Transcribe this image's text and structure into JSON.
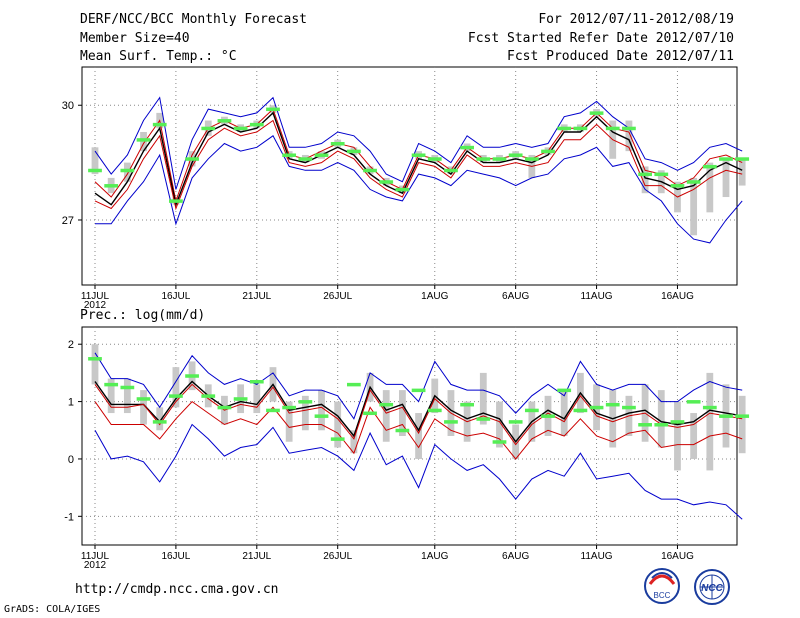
{
  "header": {
    "title": "DERF/NCC/BCC Monthly Forecast",
    "member_size": "Member Size=40",
    "variable": "Mean Surf. Temp.: °C",
    "period": "For 2012/07/11-2012/08/19",
    "refer_date": "Fcst Started Refer Date 2012/07/10",
    "produced_date": "Fcst Produced Date 2012/07/11"
  },
  "footer": {
    "url": "http://cmdp.ncc.cma.gov.cn",
    "grads": "GrADS: COLA/IGES",
    "logo_left_text": "BCC",
    "logo_right_text": "NCC"
  },
  "colors": {
    "spread_line": "#0000cc",
    "percentile_line": "#cc0000",
    "mean_line": "#000000",
    "box": "#c8c8c8",
    "median_mark": "#55ee55",
    "grid": "#888888"
  },
  "chart_data": [
    {
      "type": "line",
      "name": "temperature",
      "title": "Mean Surf. Temp.: °C",
      "days": 39,
      "xticks": [
        {
          "day": 0,
          "label": "11JUL",
          "sub": "2012"
        },
        {
          "day": 5,
          "label": "16JUL"
        },
        {
          "day": 10,
          "label": "21JUL"
        },
        {
          "day": 15,
          "label": "26JUL"
        },
        {
          "day": 21,
          "label": "1AUG"
        },
        {
          "day": 26,
          "label": "6AUG"
        },
        {
          "day": 31,
          "label": "11AUG"
        },
        {
          "day": 36,
          "label": "16AUG"
        }
      ],
      "yticks": [
        27,
        30
      ],
      "ylim": [
        25.3,
        31.0
      ],
      "grid": true,
      "series": [
        {
          "name": "max",
          "style": "blue",
          "values": [
            28.8,
            28.2,
            28.7,
            29.6,
            30.2,
            27.8,
            29.1,
            29.9,
            29.8,
            29.7,
            29.8,
            30.2,
            28.9,
            28.9,
            29.0,
            29.3,
            29.2,
            28.8,
            28.2,
            28.0,
            29.0,
            28.8,
            28.5,
            29.2,
            28.9,
            28.9,
            29.0,
            28.9,
            29.0,
            29.7,
            29.8,
            30.1,
            29.7,
            29.4,
            28.6,
            28.5,
            28.3,
            28.5,
            28.9,
            29.0,
            28.8
          ]
        },
        {
          "name": "upper",
          "style": "red",
          "values": [
            28.0,
            27.6,
            28.2,
            29.0,
            29.6,
            27.5,
            28.7,
            29.4,
            29.6,
            29.4,
            29.5,
            29.9,
            28.7,
            28.6,
            28.8,
            29.0,
            28.9,
            28.4,
            28.0,
            27.8,
            28.7,
            28.6,
            28.3,
            28.9,
            28.6,
            28.6,
            28.7,
            28.6,
            28.8,
            29.4,
            29.4,
            29.8,
            29.4,
            29.3,
            28.3,
            28.2,
            27.9,
            28.1,
            28.6,
            28.7,
            28.5
          ]
        },
        {
          "name": "mean",
          "style": "black",
          "values": [
            27.7,
            27.4,
            28.0,
            28.8,
            29.4,
            27.4,
            28.5,
            29.3,
            29.5,
            29.3,
            29.4,
            29.8,
            28.6,
            28.5,
            28.7,
            28.9,
            28.7,
            28.2,
            27.9,
            27.7,
            28.6,
            28.5,
            28.2,
            28.8,
            28.5,
            28.5,
            28.6,
            28.5,
            28.7,
            29.3,
            29.3,
            29.7,
            29.3,
            29.1,
            28.1,
            28.0,
            27.8,
            27.9,
            28.3,
            28.5,
            28.3
          ]
        },
        {
          "name": "lower",
          "style": "red",
          "values": [
            27.5,
            27.3,
            27.8,
            28.6,
            29.2,
            27.3,
            28.4,
            29.1,
            29.4,
            29.2,
            29.3,
            29.6,
            28.5,
            28.4,
            28.5,
            28.8,
            28.6,
            28.1,
            27.8,
            27.6,
            28.5,
            28.4,
            28.1,
            28.7,
            28.4,
            28.4,
            28.5,
            28.4,
            28.5,
            29.1,
            29.1,
            29.5,
            29.1,
            28.9,
            27.9,
            27.9,
            27.6,
            27.8,
            28.1,
            28.3,
            28.2
          ]
        },
        {
          "name": "min",
          "style": "blue",
          "values": [
            26.9,
            26.9,
            27.5,
            28.0,
            28.7,
            26.9,
            28.1,
            28.6,
            29.0,
            28.8,
            28.9,
            29.2,
            28.4,
            28.3,
            28.3,
            28.5,
            28.3,
            27.8,
            27.6,
            27.5,
            28.2,
            28.1,
            27.9,
            28.3,
            28.2,
            28.1,
            27.9,
            28.1,
            28.2,
            28.6,
            28.7,
            28.9,
            28.4,
            28.5,
            27.8,
            27.5,
            26.9,
            26.5,
            26.4,
            27.0,
            27.5
          ]
        }
      ],
      "boxes": [
        [
          28.2,
          28.9
        ],
        [
          27.7,
          28.1
        ],
        [
          28.0,
          28.5
        ],
        [
          28.8,
          29.3
        ],
        [
          29.4,
          29.8
        ],
        [
          27.4,
          27.6
        ],
        [
          28.4,
          28.8
        ],
        [
          29.2,
          29.6
        ],
        [
          29.5,
          29.7
        ],
        [
          29.3,
          29.5
        ],
        [
          29.4,
          29.6
        ],
        [
          29.8,
          30.0
        ],
        [
          28.6,
          28.8
        ],
        [
          28.5,
          28.7
        ],
        [
          28.6,
          28.8
        ],
        [
          28.9,
          29.1
        ],
        [
          28.7,
          28.9
        ],
        [
          28.2,
          28.4
        ],
        [
          27.9,
          28.1
        ],
        [
          27.7,
          27.9
        ],
        [
          28.6,
          28.8
        ],
        [
          28.5,
          28.7
        ],
        [
          28.2,
          28.4
        ],
        [
          28.8,
          29.0
        ],
        [
          28.5,
          28.7
        ],
        [
          28.5,
          28.7
        ],
        [
          28.6,
          28.8
        ],
        [
          28.1,
          28.7
        ],
        [
          28.7,
          28.9
        ],
        [
          29.3,
          29.5
        ],
        [
          29.3,
          29.5
        ],
        [
          29.7,
          29.9
        ],
        [
          28.6,
          29.6
        ],
        [
          28.8,
          29.6
        ],
        [
          27.7,
          28.4
        ],
        [
          27.7,
          28.3
        ],
        [
          27.2,
          28.0
        ],
        [
          26.6,
          28.1
        ],
        [
          27.2,
          28.5
        ],
        [
          27.6,
          28.6
        ],
        [
          27.9,
          28.6
        ]
      ],
      "medians": [
        28.3,
        27.9,
        28.3,
        29.1,
        29.5,
        27.5,
        28.6,
        29.4,
        29.6,
        29.4,
        29.5,
        29.9,
        28.7,
        28.6,
        28.7,
        29.0,
        28.8,
        28.3,
        28.0,
        27.8,
        28.7,
        28.6,
        28.3,
        28.9,
        28.6,
        28.6,
        28.7,
        28.6,
        28.8,
        29.4,
        29.4,
        29.8,
        29.4,
        29.4,
        28.2,
        28.2,
        27.9,
        28.0,
        28.4,
        28.6,
        28.6
      ]
    },
    {
      "type": "line",
      "name": "precipitation",
      "title": "Prec.: log(mm/d)",
      "days": 39,
      "xticks": [
        {
          "day": 0,
          "label": "11JUL",
          "sub": "2012"
        },
        {
          "day": 5,
          "label": "16JUL"
        },
        {
          "day": 10,
          "label": "21JUL"
        },
        {
          "day": 15,
          "label": "26JUL"
        },
        {
          "day": 21,
          "label": "1AUG"
        },
        {
          "day": 26,
          "label": "6AUG"
        },
        {
          "day": 31,
          "label": "11AUG"
        },
        {
          "day": 36,
          "label": "16AUG"
        }
      ],
      "yticks": [
        -1,
        0,
        1,
        2
      ],
      "ylim": [
        -1.5,
        2.3
      ],
      "grid": true,
      "series": [
        {
          "name": "max",
          "style": "blue",
          "values": [
            1.85,
            1.4,
            1.4,
            1.3,
            0.9,
            1.35,
            1.8,
            1.5,
            1.3,
            1.4,
            1.3,
            1.5,
            1.1,
            1.2,
            1.2,
            1.1,
            0.7,
            1.5,
            1.3,
            1.3,
            1.0,
            1.7,
            1.3,
            1.2,
            1.2,
            1.1,
            0.8,
            1.1,
            1.3,
            1.1,
            1.7,
            1.3,
            1.2,
            1.3,
            1.3,
            1.0,
            1.0,
            1.2,
            1.35,
            1.25,
            1.2
          ]
        },
        {
          "name": "upper",
          "style": "black",
          "values": [
            1.35,
            0.95,
            0.95,
            0.95,
            0.65,
            1.05,
            1.35,
            1.1,
            0.9,
            1.0,
            0.95,
            1.3,
            0.85,
            0.9,
            0.95,
            0.75,
            0.4,
            1.25,
            0.85,
            0.95,
            0.5,
            1.1,
            0.85,
            0.7,
            0.8,
            0.7,
            0.3,
            0.65,
            0.85,
            0.7,
            1.15,
            0.8,
            0.7,
            0.8,
            0.85,
            0.65,
            0.6,
            0.65,
            0.85,
            0.8,
            0.75
          ]
        },
        {
          "name": "mean",
          "style": "red",
          "values": [
            1.3,
            0.9,
            0.9,
            0.95,
            0.6,
            1.0,
            1.3,
            1.05,
            0.85,
            0.95,
            0.9,
            1.25,
            0.8,
            0.85,
            0.9,
            0.7,
            0.35,
            1.2,
            0.8,
            0.9,
            0.45,
            1.05,
            0.8,
            0.65,
            0.75,
            0.65,
            0.25,
            0.6,
            0.8,
            0.65,
            1.1,
            0.75,
            0.65,
            0.75,
            0.8,
            0.6,
            0.55,
            0.6,
            0.8,
            0.75,
            0.7
          ]
        },
        {
          "name": "lower",
          "style": "red",
          "values": [
            1.0,
            0.6,
            0.6,
            0.6,
            0.35,
            0.7,
            1.0,
            0.8,
            0.6,
            0.7,
            0.6,
            0.9,
            0.55,
            0.6,
            0.6,
            0.45,
            0.1,
            0.9,
            0.5,
            0.6,
            0.2,
            0.7,
            0.5,
            0.4,
            0.45,
            0.35,
            0.0,
            0.35,
            0.5,
            0.4,
            0.7,
            0.4,
            0.3,
            0.45,
            0.5,
            0.2,
            0.25,
            0.25,
            0.4,
            0.45,
            0.35
          ]
        },
        {
          "name": "min",
          "style": "blue",
          "values": [
            0.5,
            0.0,
            0.05,
            -0.05,
            -0.4,
            0.05,
            0.6,
            0.35,
            0.05,
            0.2,
            0.25,
            0.55,
            0.1,
            0.15,
            0.2,
            0.05,
            -0.2,
            0.45,
            -0.1,
            0.05,
            -0.5,
            0.25,
            0.0,
            -0.2,
            -0.1,
            -0.35,
            -0.7,
            -0.35,
            -0.2,
            -0.3,
            0.1,
            -0.35,
            -0.3,
            -0.25,
            -0.55,
            -0.7,
            -0.7,
            -0.8,
            -0.75,
            -0.8,
            -1.05
          ]
        }
      ],
      "boxes": [
        [
          1.3,
          2.0
        ],
        [
          0.8,
          1.4
        ],
        [
          0.8,
          1.4
        ],
        [
          0.6,
          1.2
        ],
        [
          0.5,
          0.9
        ],
        [
          0.9,
          1.6
        ],
        [
          1.2,
          1.7
        ],
        [
          0.9,
          1.3
        ],
        [
          0.6,
          1.1
        ],
        [
          0.8,
          1.3
        ],
        [
          0.8,
          1.3
        ],
        [
          1.0,
          1.6
        ],
        [
          0.3,
          1.0
        ],
        [
          0.5,
          1.1
        ],
        [
          0.5,
          1.2
        ],
        [
          0.2,
          1.0
        ],
        [
          0.1,
          0.5
        ],
        [
          1.0,
          1.5
        ],
        [
          0.3,
          1.2
        ],
        [
          0.4,
          1.2
        ],
        [
          0.0,
          0.8
        ],
        [
          0.8,
          1.4
        ],
        [
          0.4,
          1.2
        ],
        [
          0.3,
          1.0
        ],
        [
          0.6,
          1.5
        ],
        [
          0.2,
          1.0
        ],
        [
          0.0,
          0.6
        ],
        [
          0.3,
          1.0
        ],
        [
          0.4,
          1.1
        ],
        [
          0.4,
          1.2
        ],
        [
          0.8,
          1.5
        ],
        [
          0.5,
          1.3
        ],
        [
          0.2,
          1.2
        ],
        [
          0.4,
          1.1
        ],
        [
          0.3,
          1.3
        ],
        [
          0.2,
          1.2
        ],
        [
          -0.2,
          1.0
        ],
        [
          0.0,
          0.8
        ],
        [
          -0.2,
          1.5
        ],
        [
          0.2,
          1.3
        ],
        [
          0.1,
          1.1
        ]
      ],
      "medians": [
        1.75,
        1.3,
        1.25,
        1.05,
        0.65,
        1.1,
        1.45,
        1.1,
        0.9,
        1.05,
        1.35,
        0.85,
        0.9,
        1.0,
        0.75,
        0.35,
        1.3,
        0.8,
        0.95,
        0.5,
        1.2,
        0.85,
        0.65,
        0.95,
        0.7,
        0.3,
        0.65,
        0.85,
        0.75,
        1.2,
        0.85,
        0.9,
        0.95,
        0.9,
        0.6,
        0.6,
        0.65,
        1.0,
        0.9,
        0.75,
        0.75
      ]
    }
  ]
}
